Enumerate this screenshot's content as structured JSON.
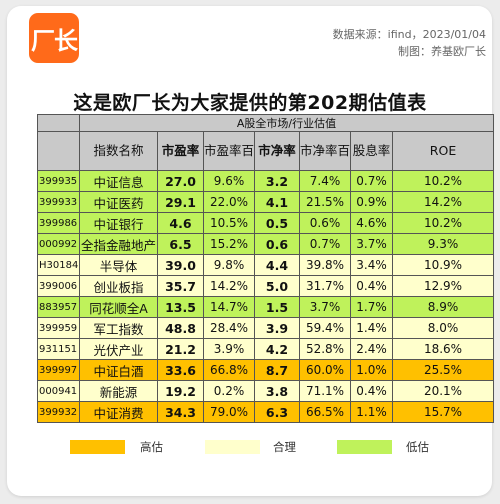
{
  "brand": {
    "logo_text": "厂长",
    "color": "#ff6a1a"
  },
  "meta": {
    "source": "数据来源：ifind，2023/01/04",
    "maker": "制图：养基欧厂长"
  },
  "title": "这是欧厂长为大家提供的第202期估值表",
  "table": {
    "super_header": "A股全市场/行业估值",
    "columns": [
      "指数名称",
      "市盈率",
      "市盈率百分位",
      "市净率",
      "市净率百分位",
      "股息率",
      "ROE"
    ],
    "rows": [
      {
        "code": "399935",
        "name": "中证信息",
        "pe": "27.0",
        "pe_pct": "9.6%",
        "pb": "3.2",
        "pb_pct": "7.4%",
        "dy": "0.7%",
        "roe": "10.2%",
        "level": "low"
      },
      {
        "code": "399933",
        "name": "中证医药",
        "pe": "29.1",
        "pe_pct": "22.0%",
        "pb": "4.1",
        "pb_pct": "21.5%",
        "dy": "0.9%",
        "roe": "14.2%",
        "level": "low"
      },
      {
        "code": "399986",
        "name": "中证银行",
        "pe": "4.6",
        "pe_pct": "10.5%",
        "pb": "0.5",
        "pb_pct": "0.6%",
        "dy": "4.6%",
        "roe": "10.2%",
        "level": "low"
      },
      {
        "code": "000992",
        "name": "全指金融地产",
        "pe": "6.5",
        "pe_pct": "15.2%",
        "pb": "0.6",
        "pb_pct": "0.7%",
        "dy": "3.7%",
        "roe": "9.3%",
        "level": "low"
      },
      {
        "code": "H30184",
        "name": "半导体",
        "pe": "39.0",
        "pe_pct": "9.8%",
        "pb": "4.4",
        "pb_pct": "39.8%",
        "dy": "3.4%",
        "roe": "10.9%",
        "level": "mid"
      },
      {
        "code": "399006",
        "name": "创业板指",
        "pe": "35.7",
        "pe_pct": "14.2%",
        "pb": "5.0",
        "pb_pct": "31.7%",
        "dy": "0.4%",
        "roe": "12.9%",
        "level": "mid"
      },
      {
        "code": "883957",
        "name": "同花顺全A",
        "pe": "13.5",
        "pe_pct": "14.7%",
        "pb": "1.5",
        "pb_pct": "3.7%",
        "dy": "1.7%",
        "roe": "8.9%",
        "level": "low"
      },
      {
        "code": "399959",
        "name": "军工指数",
        "pe": "48.8",
        "pe_pct": "28.4%",
        "pb": "3.9",
        "pb_pct": "59.4%",
        "dy": "1.4%",
        "roe": "8.0%",
        "level": "mid"
      },
      {
        "code": "931151",
        "name": "光伏产业",
        "pe": "21.2",
        "pe_pct": "3.9%",
        "pb": "4.2",
        "pb_pct": "52.8%",
        "dy": "2.4%",
        "roe": "18.6%",
        "level": "mid"
      },
      {
        "code": "399997",
        "name": "中证白酒",
        "pe": "33.6",
        "pe_pct": "66.8%",
        "pb": "8.7",
        "pb_pct": "60.0%",
        "dy": "1.0%",
        "roe": "25.5%",
        "level": "high"
      },
      {
        "code": "000941",
        "name": "新能源",
        "pe": "19.2",
        "pe_pct": "0.2%",
        "pb": "3.8",
        "pb_pct": "71.1%",
        "dy": "0.4%",
        "roe": "20.1%",
        "level": "mid"
      },
      {
        "code": "399932",
        "name": "中证消费",
        "pe": "34.3",
        "pe_pct": "79.0%",
        "pb": "6.3",
        "pb_pct": "66.5%",
        "dy": "1.1%",
        "roe": "15.7%",
        "level": "high"
      }
    ]
  },
  "legend": [
    {
      "label": "高估",
      "color": "#ffc000"
    },
    {
      "label": "合理",
      "color": "#ffffcc"
    },
    {
      "label": "低估",
      "color": "#bff25b"
    }
  ]
}
